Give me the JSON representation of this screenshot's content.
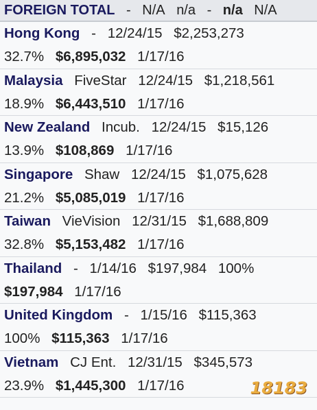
{
  "header": [
    {
      "text": "FOREIGN TOTAL",
      "bold": true
    },
    {
      "text": "-"
    },
    {
      "text": "N/A"
    },
    {
      "text": "n/a"
    },
    {
      "text": "-"
    },
    {
      "text": "n/a",
      "bold": true
    },
    {
      "text": "N/A"
    }
  ],
  "rows": [
    {
      "country": "Hong Kong",
      "lines": [
        [
          {
            "text": "-"
          },
          {
            "text": "12/24/15"
          },
          {
            "text": "$2,253,273"
          }
        ],
        [
          {
            "text": "32.7%"
          },
          {
            "text": "$6,895,032",
            "bold": true
          },
          {
            "text": "1/17/16"
          }
        ]
      ]
    },
    {
      "country": "Malaysia",
      "lines": [
        [
          {
            "text": "FiveStar"
          },
          {
            "text": "12/24/15"
          },
          {
            "text": "$1,218,561"
          }
        ],
        [
          {
            "text": "18.9%"
          },
          {
            "text": "$6,443,510",
            "bold": true
          },
          {
            "text": "1/17/16"
          }
        ]
      ]
    },
    {
      "country": "New Zealand",
      "lines": [
        [
          {
            "text": "Incub."
          },
          {
            "text": "12/24/15"
          },
          {
            "text": "$15,126"
          }
        ],
        [
          {
            "text": "13.9%"
          },
          {
            "text": "$108,869",
            "bold": true
          },
          {
            "text": "1/17/16"
          }
        ]
      ]
    },
    {
      "country": "Singapore",
      "lines": [
        [
          {
            "text": "Shaw"
          },
          {
            "text": "12/24/15"
          },
          {
            "text": "$1,075,628"
          }
        ],
        [
          {
            "text": "21.2%"
          },
          {
            "text": "$5,085,019",
            "bold": true
          },
          {
            "text": "1/17/16"
          }
        ]
      ]
    },
    {
      "country": "Taiwan",
      "lines": [
        [
          {
            "text": "VieVision"
          },
          {
            "text": "12/31/15"
          },
          {
            "text": "$1,688,809"
          }
        ],
        [
          {
            "text": "32.8%"
          },
          {
            "text": "$5,153,482",
            "bold": true
          },
          {
            "text": "1/17/16"
          }
        ]
      ]
    },
    {
      "country": "Thailand",
      "lines": [
        [
          {
            "text": "-"
          },
          {
            "text": "1/14/16"
          },
          {
            "text": "$197,984"
          },
          {
            "text": "100%"
          }
        ],
        [
          {
            "text": "$197,984",
            "bold": true
          },
          {
            "text": "1/17/16"
          }
        ]
      ]
    },
    {
      "country": "United Kingdom",
      "lines": [
        [
          {
            "text": "-"
          },
          {
            "text": "1/15/16"
          },
          {
            "text": "$115,363"
          }
        ],
        [
          {
            "text": "100%"
          },
          {
            "text": "$115,363",
            "bold": true
          },
          {
            "text": "1/17/16"
          }
        ]
      ]
    },
    {
      "country": "Vietnam",
      "lines": [
        [
          {
            "text": "CJ Ent."
          },
          {
            "text": "12/31/15"
          },
          {
            "text": "$345,573"
          }
        ],
        [
          {
            "text": "23.9%"
          },
          {
            "text": "$1,445,300",
            "bold": true
          },
          {
            "text": "1/17/16"
          }
        ]
      ]
    }
  ],
  "watermark": "18183"
}
